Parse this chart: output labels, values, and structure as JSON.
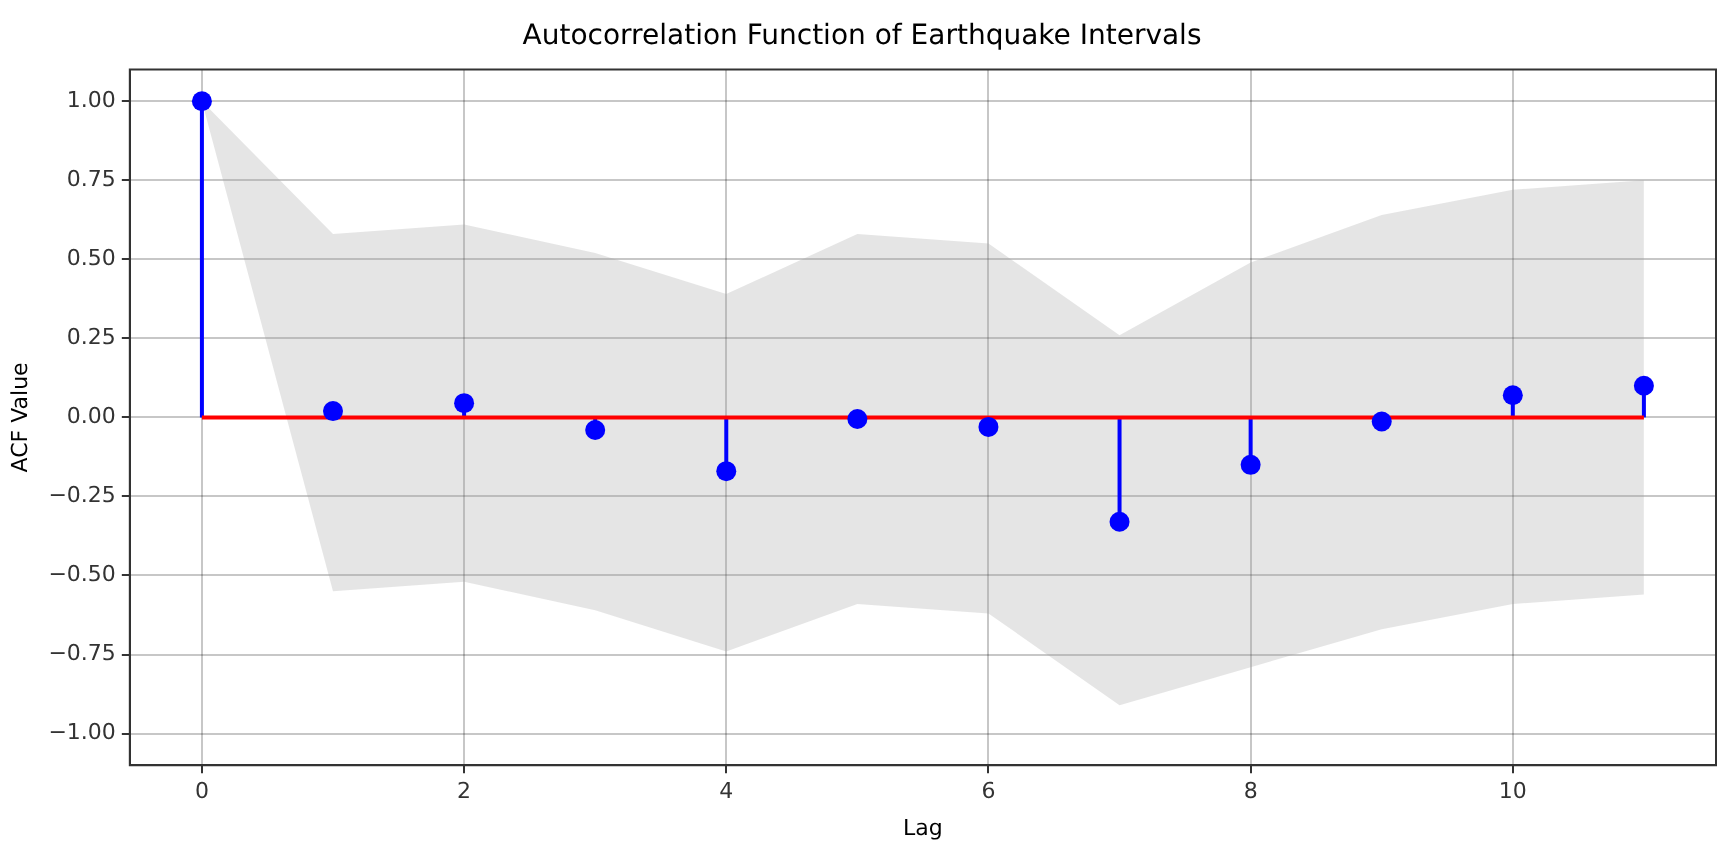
{
  "chart_data": {
    "type": "lollipop",
    "title": "Autocorrelation Function of Earthquake Intervals",
    "xlabel": "Lag",
    "ylabel": "ACF Value",
    "x": [
      0,
      1,
      2,
      3,
      4,
      5,
      6,
      7,
      8,
      9,
      10,
      11
    ],
    "series": [
      {
        "color": "#0000ff",
        "values": [
          1.0,
          0.02,
          0.045,
          -0.04,
          -0.17,
          -0.005,
          -0.03,
          -0.33,
          -0.15,
          -0.013,
          0.07,
          0.1
        ],
        "lower": [
          1.0,
          -0.55,
          -0.52,
          -0.61,
          -0.74,
          -0.59,
          -0.62,
          -0.91,
          -0.79,
          -0.67,
          -0.59,
          -0.56
        ],
        "upper": [
          1.0,
          0.58,
          0.61,
          0.52,
          0.39,
          0.58,
          0.55,
          0.26,
          0.49,
          0.64,
          0.72,
          0.75
        ]
      }
    ],
    "ref_lines": [
      {
        "axis": "y",
        "value": 0,
        "color": "#ff0000"
      }
    ],
    "xlim": [
      -0.55,
      11.55
    ],
    "xticks": [
      0,
      2,
      4,
      6,
      8,
      10
    ],
    "ylim": [
      -1.1,
      1.1
    ],
    "yticks": [
      {
        "value": -1,
        "label": "−1.00"
      },
      {
        "value": -0.75,
        "label": "−0.75"
      },
      {
        "value": -0.5,
        "label": "−0.50"
      },
      {
        "value": -0.25,
        "label": "−0.25"
      },
      {
        "value": 0,
        "label": "0.00"
      },
      {
        "value": 0.25,
        "label": "0.25"
      },
      {
        "value": 0.5,
        "label": "0.50"
      },
      {
        "value": 0.75,
        "label": "0.75"
      },
      {
        "value": 1,
        "label": "1.00"
      }
    ],
    "grid": true,
    "marker": "circle",
    "legend": false
  }
}
